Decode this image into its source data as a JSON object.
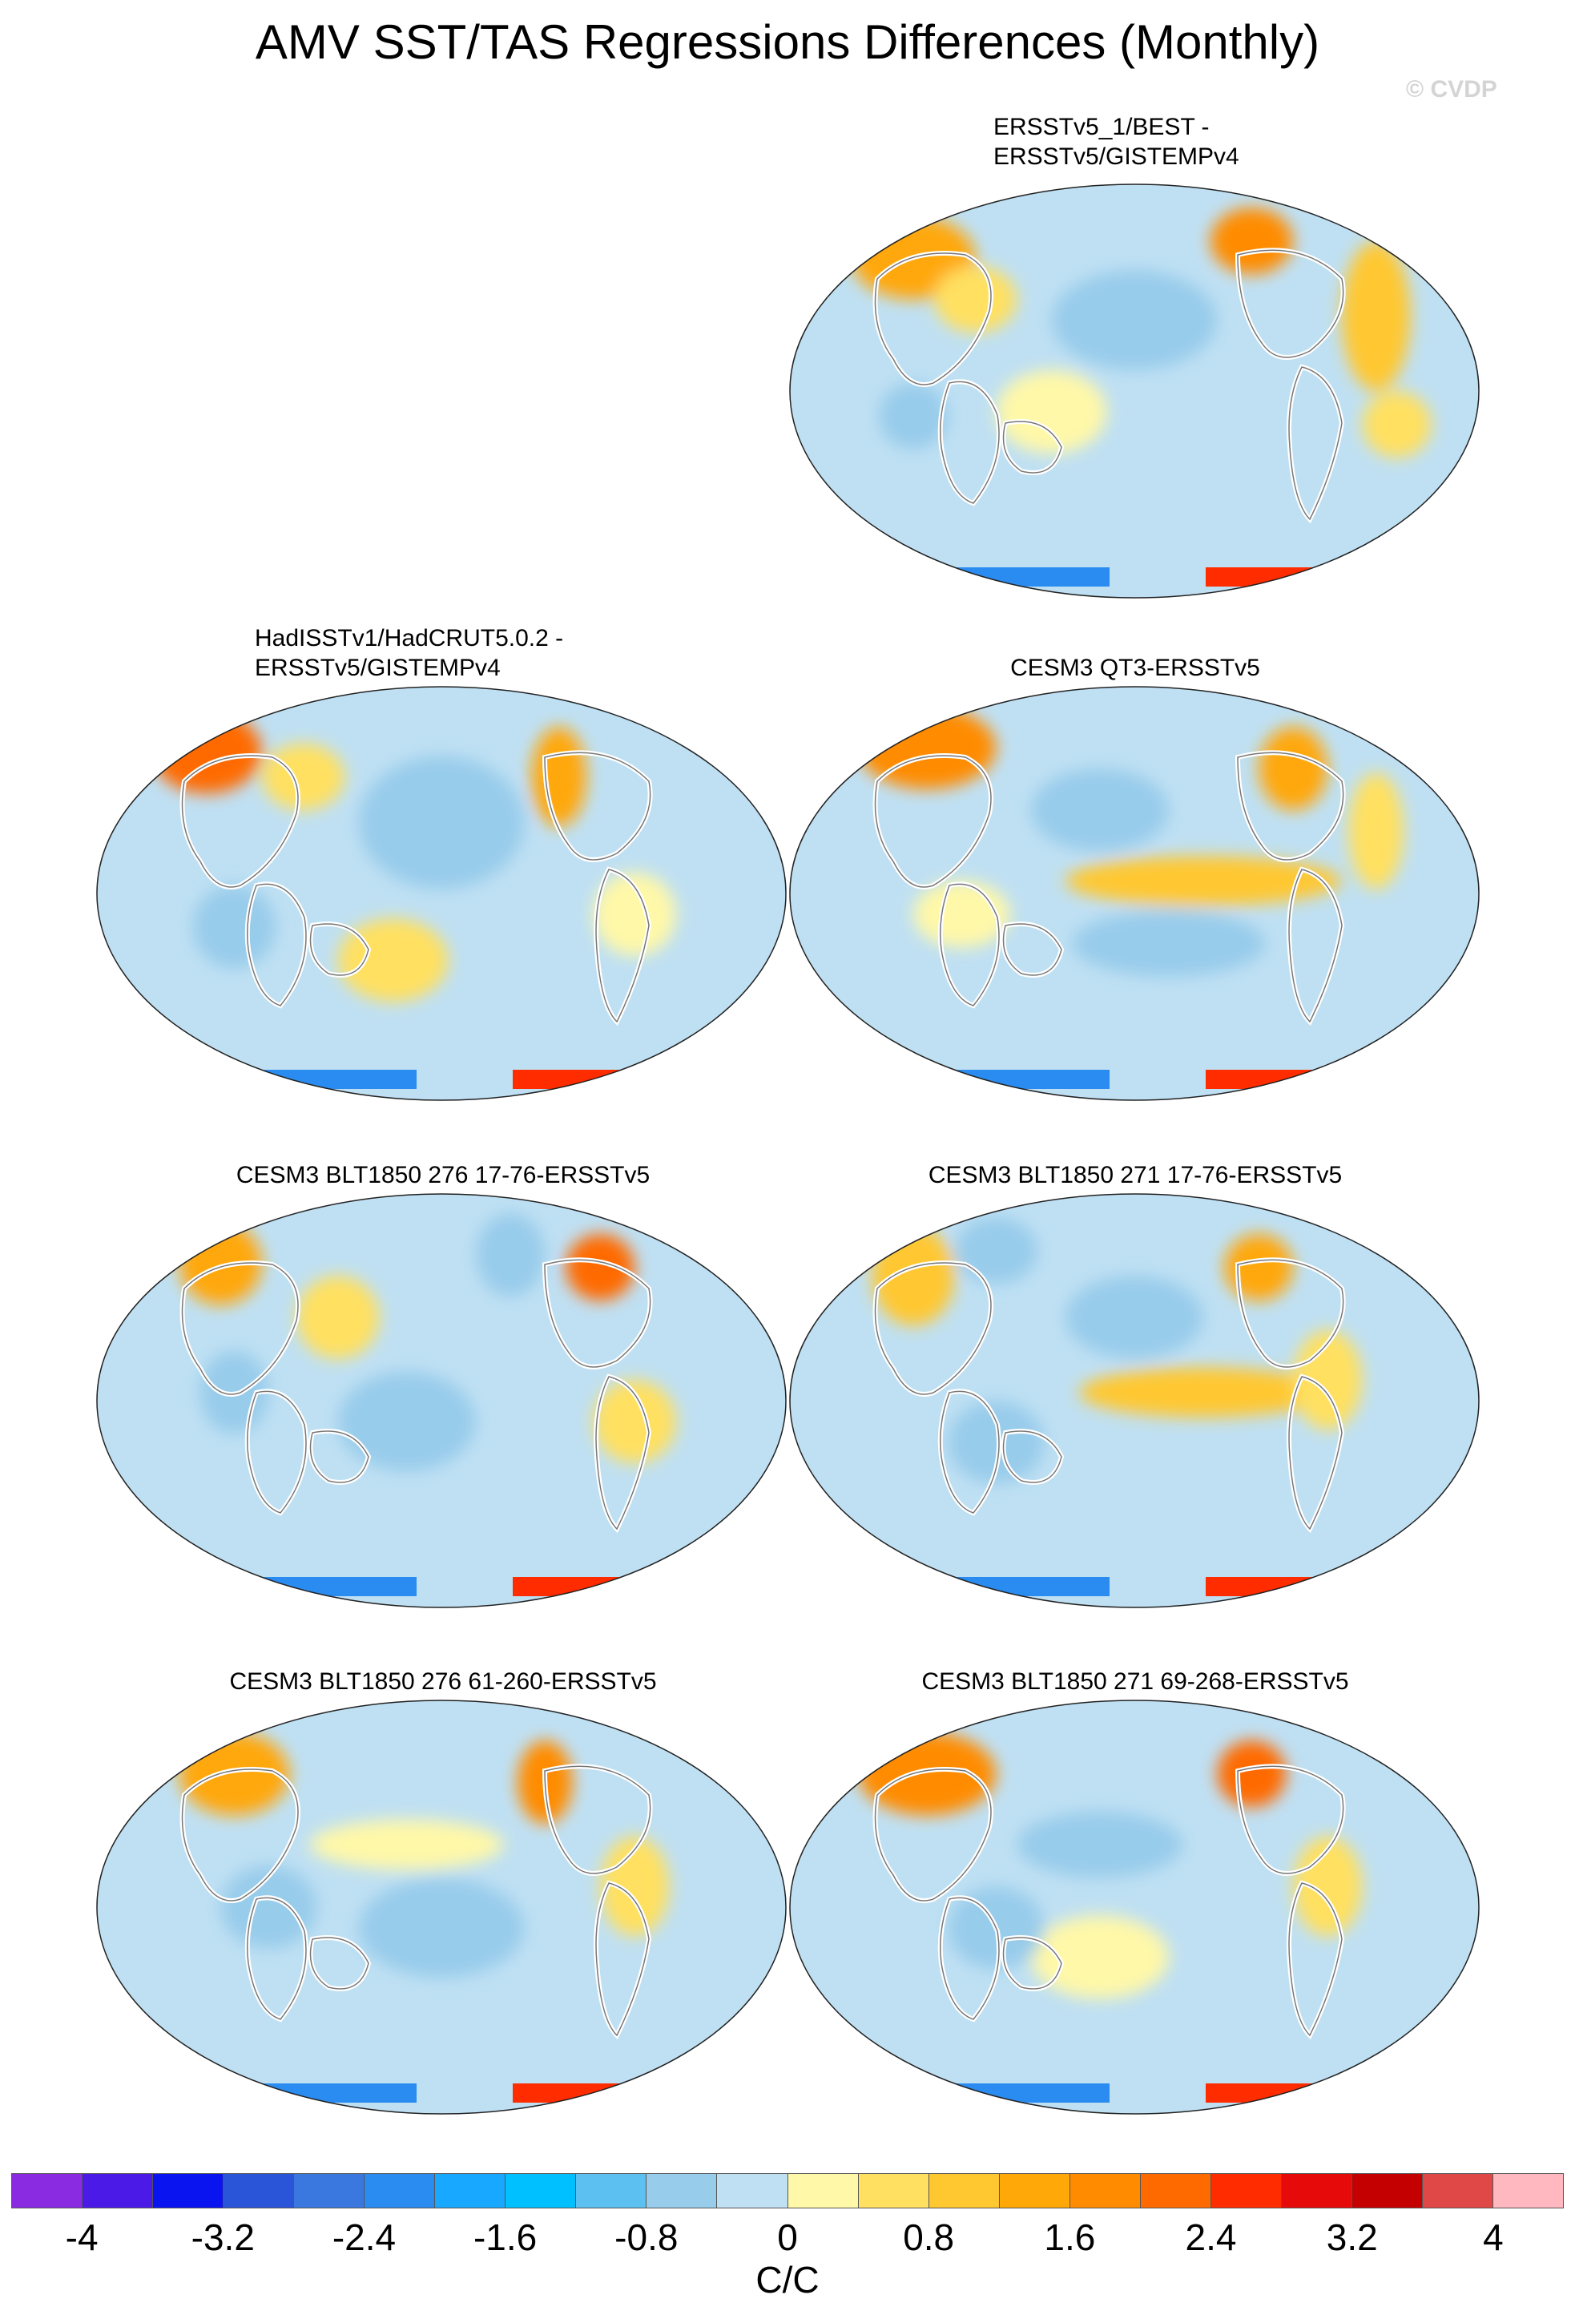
{
  "title": "AMV SST/TAS Regressions Differences (Monthly)",
  "credit": "© CVDP",
  "panels": [
    {
      "id": "p1",
      "title_lines": [
        "ERSSTv5_1/BEST -",
        "ERSSTv5/GISTEMPv4"
      ]
    },
    {
      "id": "p2",
      "title_lines": [
        "HadISSTv1/HadCRUT5.0.2 -",
        "ERSSTv5/GISTEMPv4"
      ]
    },
    {
      "id": "p3",
      "title_lines": [
        "CESM3 QT3-ERSSTv5"
      ]
    },
    {
      "id": "p4",
      "title_lines": [
        "CESM3 BLT1850 276 17-76-ERSSTv5"
      ]
    },
    {
      "id": "p5",
      "title_lines": [
        "CESM3 BLT1850 271 17-76-ERSSTv5"
      ]
    },
    {
      "id": "p6",
      "title_lines": [
        "CESM3 BLT1850 276 61-260-ERSSTv5"
      ]
    },
    {
      "id": "p7",
      "title_lines": [
        "CESM3 BLT1850 271 69-268-ERSSTv5"
      ]
    }
  ],
  "colorbar": {
    "colors": [
      "#8a2be2",
      "#4b1ae6",
      "#0a14f0",
      "#2a55d8",
      "#3a78e0",
      "#2a8cf0",
      "#18a8ff",
      "#00c0ff",
      "#5cc0f0",
      "#98cceb",
      "#bfe0f3",
      "#fff8a8",
      "#ffe060",
      "#ffc830",
      "#ffa808",
      "#ff8c00",
      "#ff6a00",
      "#ff2c00",
      "#e60a0a",
      "#c40000",
      "#e04848",
      "#ffb8c0"
    ],
    "tick_labels": [
      "-4",
      "-3.2",
      "-2.4",
      "-1.6",
      "-0.8",
      "0",
      "0.8",
      "1.6",
      "2.4",
      "3.2",
      "4"
    ],
    "units": "C/C"
  }
}
